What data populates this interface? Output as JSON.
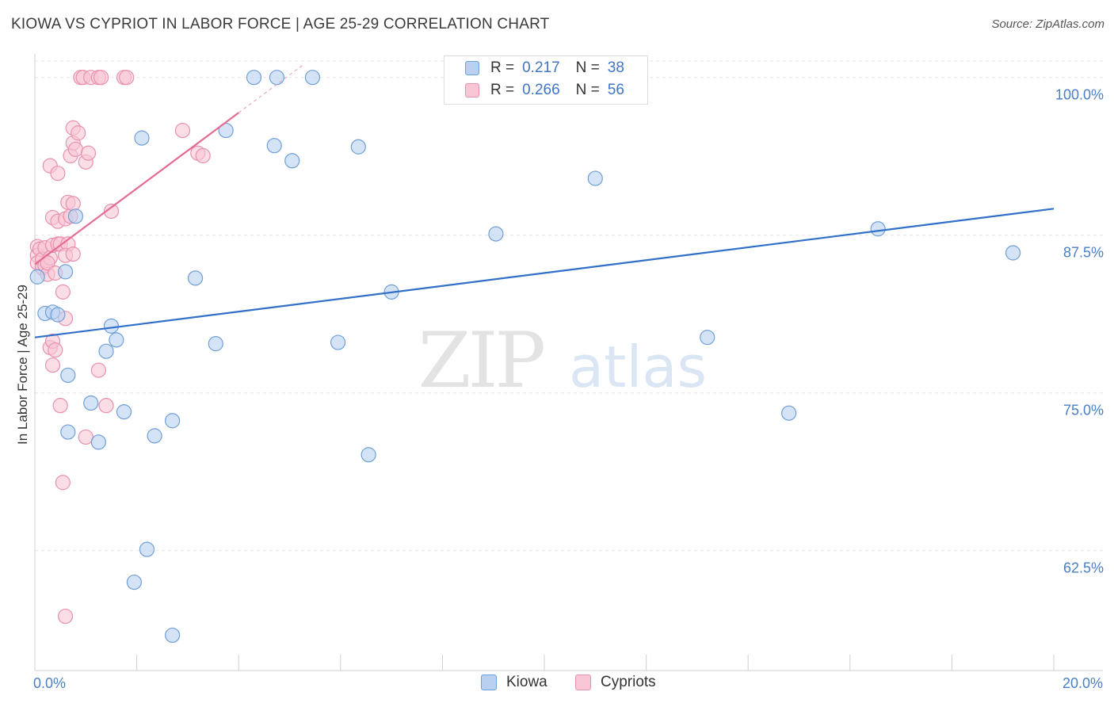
{
  "title": "KIOWA VS CYPRIOT IN LABOR FORCE | AGE 25-29 CORRELATION CHART",
  "source": "Source: ZipAtlas.com",
  "watermark": {
    "zip": "ZIP",
    "atlas": "atlas"
  },
  "colors": {
    "kiowa_fill": "#b9d0f1",
    "kiowa_stroke": "#6f9fd8",
    "kiowa_line": "#3070c8",
    "cypriot_fill": "#f8c6d5",
    "cypriot_stroke": "#e891ae",
    "cypriot_line": "#e46b93",
    "tick_label": "#4a7fc8"
  },
  "legend_top": {
    "kiowa": {
      "r_label": "R =",
      "r_value": "0.217",
      "n_label": "N =",
      "n_value": "38"
    },
    "cypriot": {
      "r_label": "R =",
      "r_value": "0.266",
      "n_label": "N =",
      "n_value": "56"
    }
  },
  "legend_bottom": {
    "kiowa": "Kiowa",
    "cypriot": "Cypriots"
  },
  "chart_data": {
    "type": "scatter",
    "title": "KIOWA VS CYPRIOT IN LABOR FORCE | AGE 25-29 CORRELATION CHART",
    "xlabel": "",
    "ylabel": "In Labor Force | Age 25-29",
    "xlim": [
      0,
      20
    ],
    "ylim": [
      53,
      101.3
    ],
    "x_tick_labels": [
      "0.0%",
      "20.0%"
    ],
    "y_ticks": [
      62.5,
      75.0,
      87.5,
      100.0
    ],
    "y_tick_labels": [
      "62.5%",
      "75.0%",
      "87.5%",
      "100.0%"
    ],
    "grid": true,
    "series": [
      {
        "name": "Kiowa",
        "r": 0.217,
        "n": 38,
        "points": [
          [
            0.05,
            84.2
          ],
          [
            0.2,
            81.3
          ],
          [
            0.35,
            81.4
          ],
          [
            0.45,
            81.2
          ],
          [
            0.6,
            84.6
          ],
          [
            0.65,
            76.4
          ],
          [
            0.65,
            71.9
          ],
          [
            0.8,
            89.0
          ],
          [
            1.1,
            74.2
          ],
          [
            1.25,
            71.1
          ],
          [
            1.4,
            78.3
          ],
          [
            1.5,
            80.3
          ],
          [
            1.6,
            79.2
          ],
          [
            1.75,
            73.5
          ],
          [
            1.95,
            60.0
          ],
          [
            2.1,
            95.2
          ],
          [
            2.2,
            62.6
          ],
          [
            2.35,
            71.6
          ],
          [
            2.7,
            72.8
          ],
          [
            2.7,
            55.8
          ],
          [
            3.15,
            84.1
          ],
          [
            3.55,
            78.9
          ],
          [
            3.75,
            95.8
          ],
          [
            4.3,
            100.0
          ],
          [
            4.7,
            94.6
          ],
          [
            4.75,
            100.0
          ],
          [
            5.05,
            93.4
          ],
          [
            5.45,
            100.0
          ],
          [
            5.95,
            79.0
          ],
          [
            6.35,
            94.5
          ],
          [
            6.55,
            70.1
          ],
          [
            7.0,
            83.0
          ],
          [
            9.05,
            87.6
          ],
          [
            11.0,
            92.0
          ],
          [
            13.2,
            79.4
          ],
          [
            14.8,
            73.4
          ],
          [
            16.55,
            88.0
          ],
          [
            19.2,
            86.1
          ]
        ],
        "trend": {
          "x": [
            0,
            20
          ],
          "y": [
            79.4,
            89.6
          ]
        }
      },
      {
        "name": "Cypriots",
        "r": 0.266,
        "n": 56,
        "points": [
          [
            0.05,
            86.6
          ],
          [
            0.05,
            85.9
          ],
          [
            0.05,
            85.3
          ],
          [
            0.1,
            86.4
          ],
          [
            0.15,
            85.6
          ],
          [
            0.15,
            84.9
          ],
          [
            0.2,
            86.5
          ],
          [
            0.2,
            85.1
          ],
          [
            0.25,
            84.4
          ],
          [
            0.3,
            85.7
          ],
          [
            0.3,
            93.0
          ],
          [
            0.35,
            88.9
          ],
          [
            0.3,
            78.6
          ],
          [
            0.35,
            79.1
          ],
          [
            0.35,
            77.2
          ],
          [
            0.4,
            78.4
          ],
          [
            0.35,
            86.7
          ],
          [
            0.45,
            86.8
          ],
          [
            0.45,
            92.4
          ],
          [
            0.45,
            88.6
          ],
          [
            0.5,
            86.8
          ],
          [
            0.5,
            74.0
          ],
          [
            0.55,
            67.9
          ],
          [
            0.55,
            83.0
          ],
          [
            0.6,
            80.9
          ],
          [
            0.6,
            88.8
          ],
          [
            0.65,
            90.1
          ],
          [
            0.65,
            86.8
          ],
          [
            0.6,
            85.9
          ],
          [
            0.6,
            57.3
          ],
          [
            0.7,
            93.8
          ],
          [
            0.7,
            89.0
          ],
          [
            0.75,
            94.8
          ],
          [
            0.75,
            96.0
          ],
          [
            0.75,
            90.0
          ],
          [
            0.75,
            86.0
          ],
          [
            0.8,
            94.3
          ],
          [
            0.85,
            95.6
          ],
          [
            0.9,
            100.0
          ],
          [
            0.95,
            100.0
          ],
          [
            1.0,
            93.3
          ],
          [
            1.05,
            94.0
          ],
          [
            1.0,
            71.5
          ],
          [
            1.1,
            100.0
          ],
          [
            1.25,
            100.0
          ],
          [
            1.3,
            100.0
          ],
          [
            1.25,
            76.8
          ],
          [
            1.4,
            74.0
          ],
          [
            1.5,
            89.4
          ],
          [
            1.75,
            100.0
          ],
          [
            1.8,
            100.0
          ],
          [
            2.9,
            95.8
          ],
          [
            3.2,
            94.0
          ],
          [
            3.3,
            93.8
          ],
          [
            0.25,
            85.3
          ],
          [
            0.4,
            84.5
          ]
        ],
        "trend": {
          "x": [
            0,
            4.0
          ],
          "y": [
            85.2,
            97.2
          ]
        }
      }
    ]
  }
}
